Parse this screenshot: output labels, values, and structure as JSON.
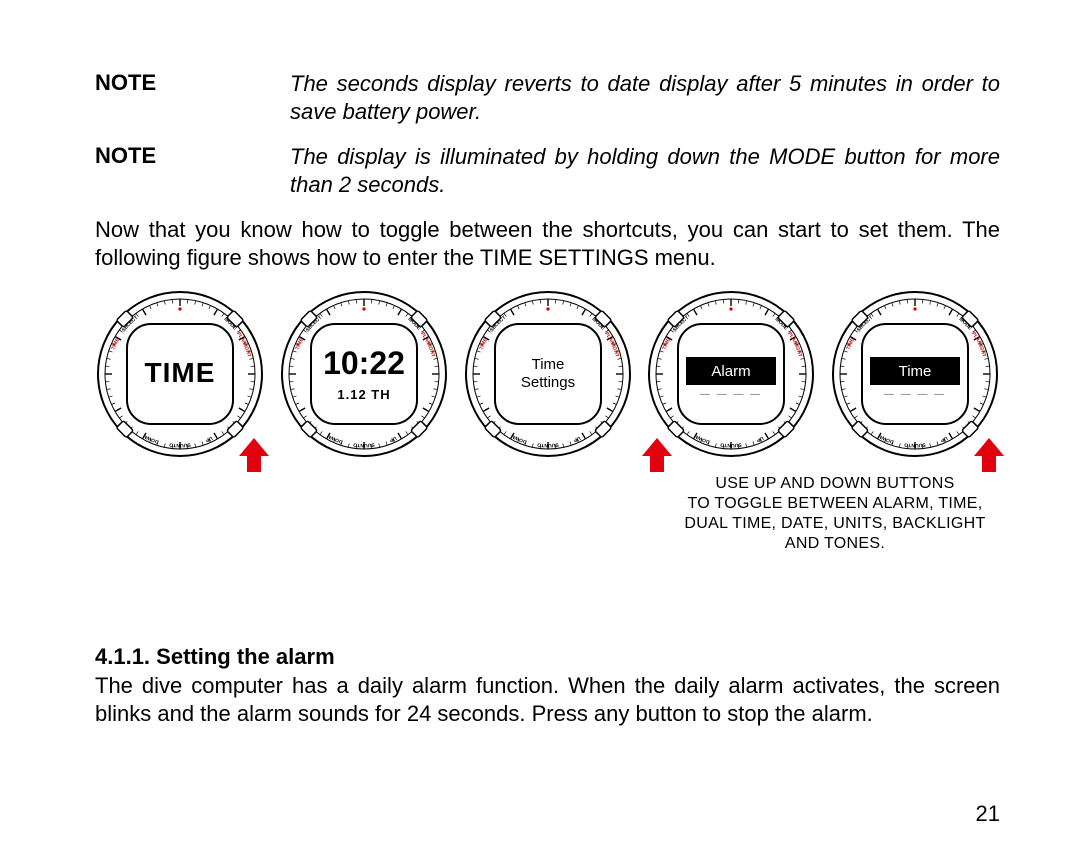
{
  "notes": [
    {
      "label": "NOTE",
      "text": "The seconds display reverts to date display after 5 minutes in order to save battery power."
    },
    {
      "label": "NOTE",
      "text": "The display is illuminated by holding down the MODE button for more than 2 seconds."
    }
  ],
  "intro_para": "Now that you know how to toggle between the shortcuts, you can start to set them. The following figure shows how to enter the TIME SETTINGS menu.",
  "watches": [
    {
      "line1": "TIME",
      "line2": "",
      "style": "big",
      "arrow": "right",
      "inverted": false
    },
    {
      "line1": "10:22",
      "line2": "1.12  TH",
      "style": "digital",
      "arrow": "none",
      "inverted": false
    },
    {
      "line1": "Time",
      "line2": "Settings",
      "style": "small",
      "arrow": "none",
      "inverted": false
    },
    {
      "line1": "Alarm",
      "line2": "",
      "style": "band",
      "arrow": "left",
      "inverted": true
    },
    {
      "line1": "Time",
      "line2": "",
      "style": "band",
      "arrow": "right",
      "inverted": true
    }
  ],
  "callout_lines": [
    "USE UP AND DOWN BUTTONS",
    "TO TOGGLE BETWEEN ALARM, TIME,",
    "DUAL TIME, DATE, UNITS, BACKLIGHT",
    "AND TONES."
  ],
  "section": {
    "heading": "4.1.1. Setting the alarm",
    "body": "The dive computer has a daily alarm function. When the daily alarm activates, the screen blinks and the alarm sounds for 24 seconds. Press any button to stop the alarm."
  },
  "page_number": "21",
  "colors": {
    "arrow": "#e3000f",
    "watch_stroke": "#000",
    "label_red": "#d40000"
  }
}
